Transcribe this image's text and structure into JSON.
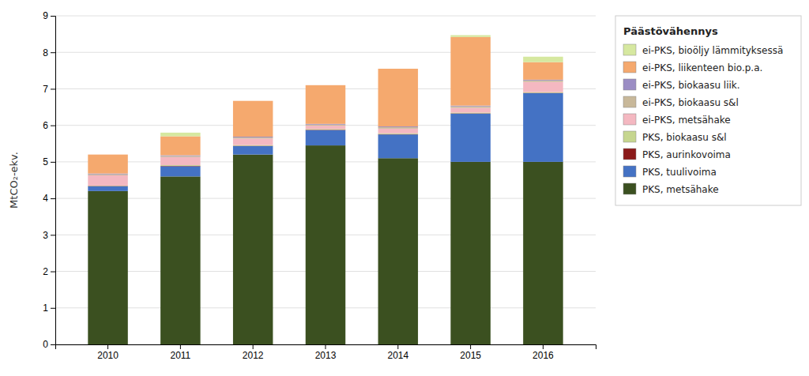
{
  "chart_data": {
    "type": "bar",
    "stacked": true,
    "categories": [
      "2010",
      "2011",
      "2012",
      "2013",
      "2014",
      "2015",
      "2016"
    ],
    "series": [
      {
        "name": "PKS, metsähake",
        "color": "#3b5020",
        "values": [
          4.2,
          4.6,
          5.2,
          5.45,
          5.1,
          5.0,
          5.0
        ]
      },
      {
        "name": "PKS, tuulivoima",
        "color": "#4472c4",
        "values": [
          0.13,
          0.28,
          0.23,
          0.42,
          0.65,
          1.32,
          1.88
        ]
      },
      {
        "name": "PKS, aurinkovoima",
        "color": "#8b1a1a",
        "values": [
          0.01,
          0.01,
          0.01,
          0.01,
          0.01,
          0.01,
          0.01
        ]
      },
      {
        "name": "PKS, biokaasu s&l",
        "color": "#c6d68f",
        "values": [
          0.01,
          0.02,
          0.02,
          0.02,
          0.02,
          0.02,
          0.02
        ]
      },
      {
        "name": "ei-PKS, metsähake",
        "color": "#f4b8c1",
        "values": [
          0.28,
          0.22,
          0.18,
          0.09,
          0.13,
          0.13,
          0.28
        ]
      },
      {
        "name": "ei-PKS, biokaasu s&l",
        "color": "#c8b89a",
        "values": [
          0.03,
          0.03,
          0.03,
          0.03,
          0.04,
          0.04,
          0.04
        ]
      },
      {
        "name": "ei-PKS, biokaasu liik.",
        "color": "#9b8dc4",
        "values": [
          0.02,
          0.02,
          0.02,
          0.02,
          0.02,
          0.02,
          0.02
        ]
      },
      {
        "name": "ei-PKS, liikenteen bio.p.a.",
        "color": "#f5a96e",
        "values": [
          0.52,
          0.52,
          0.98,
          1.06,
          1.58,
          1.88,
          0.48
        ]
      },
      {
        "name": "ei-PKS, bioöljy lämmityksessä",
        "color": "#d6e8a0",
        "values": [
          0.0,
          0.1,
          0.0,
          0.0,
          0.0,
          0.05,
          0.15
        ]
      }
    ],
    "ylabel": "MtCO₂-ekv.",
    "ylim": [
      0,
      9
    ],
    "yticks": [
      0,
      1,
      2,
      3,
      4,
      5,
      6,
      7,
      8,
      9
    ],
    "legend_title": "Päästövähennys",
    "legend": "right",
    "grid": true
  }
}
